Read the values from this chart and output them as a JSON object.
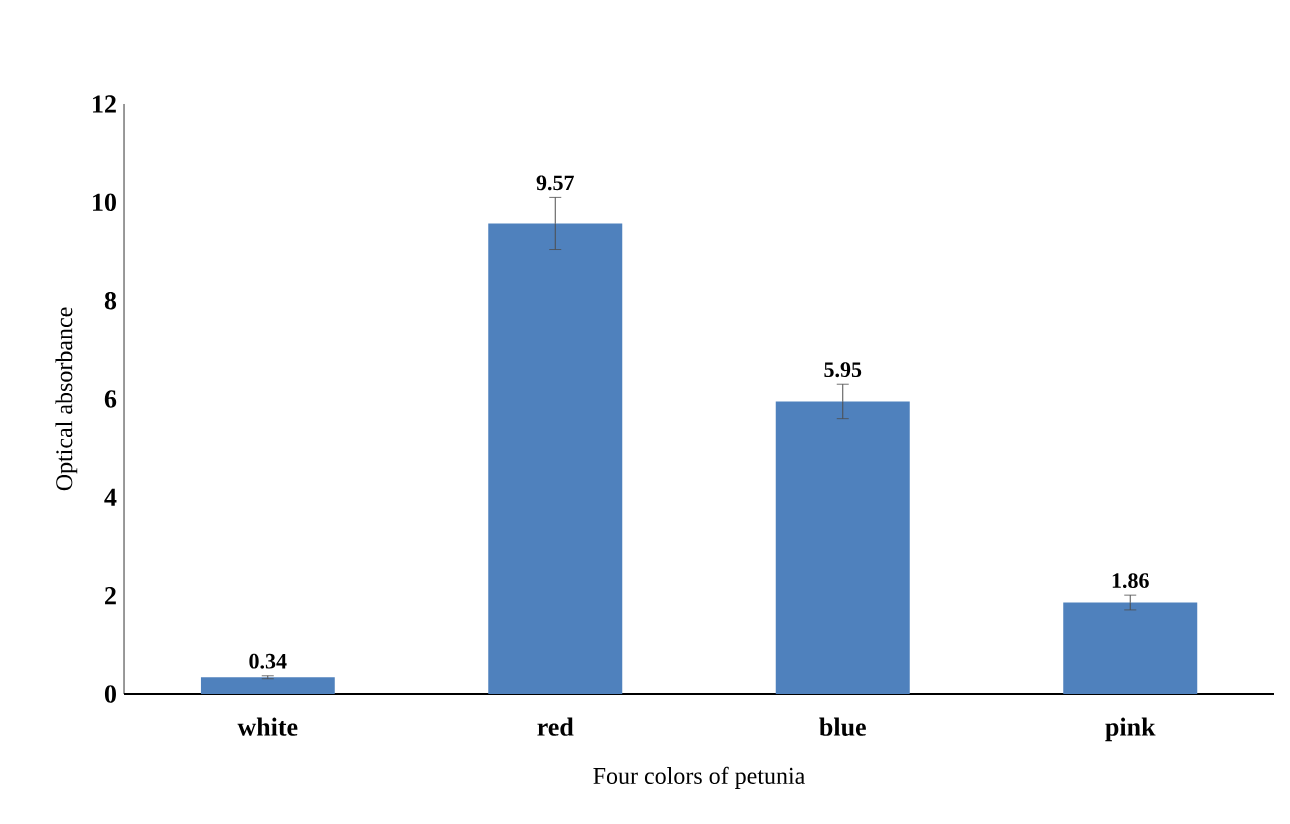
{
  "chart_data": {
    "type": "bar",
    "xlabel": "Four colors of petunia",
    "ylabel": "Optical absorbance",
    "categories": [
      "white",
      "red",
      "blue",
      "pink"
    ],
    "values": [
      0.34,
      9.57,
      5.95,
      1.86
    ],
    "errors": [
      0.03,
      0.53,
      0.35,
      0.15
    ],
    "color": "#4f81bd",
    "data_labels": true,
    "ylim": [
      0,
      12
    ],
    "yticks": [
      0,
      2,
      4,
      6,
      8,
      10,
      12
    ]
  }
}
